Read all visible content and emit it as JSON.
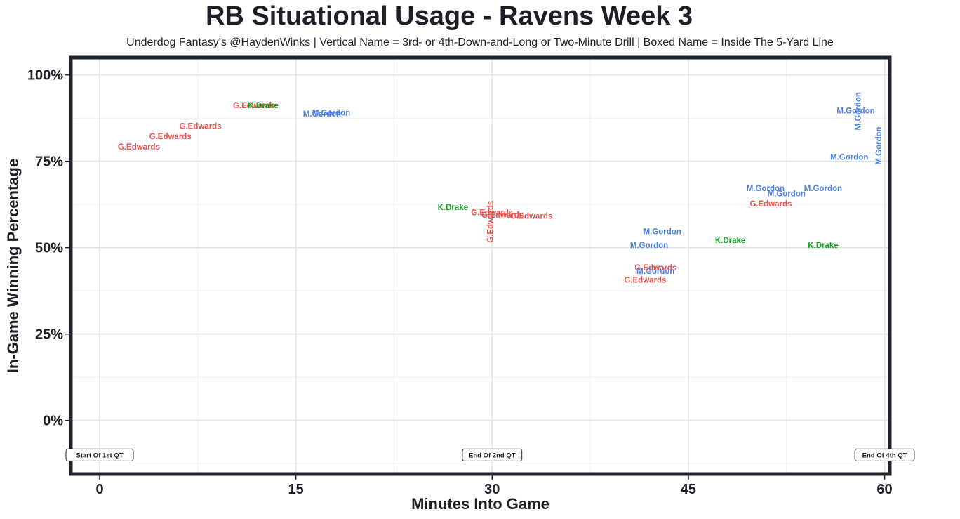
{
  "chart_data": {
    "type": "scatter",
    "title": "RB Situational Usage - Ravens Week 3",
    "subtitle": "Underdog Fantasy's @HaydenWinks | Vertical Name = 3rd- or 4th-Down-and-Long or Two-Minute Drill | Boxed Name = Inside The 5-Yard Line",
    "xlabel": "Minutes Into Game",
    "ylabel": "In-Game Winning Percentage",
    "xlim": [
      -2.2,
      60.4
    ],
    "ylim": [
      -15.5,
      105
    ],
    "x_ticks": [
      0,
      15,
      30,
      45,
      60
    ],
    "x_tick_labels": [
      "0",
      "15",
      "30",
      "45",
      "60"
    ],
    "y_ticks": [
      0,
      25,
      50,
      75,
      100
    ],
    "y_tick_labels": [
      "0%",
      "25%",
      "50%",
      "75%",
      "100%"
    ],
    "grid": true,
    "colors": {
      "G.Edwards": "#e8534e",
      "K.Drake": "#13a323",
      "M.Gordon": "#4a7fe6"
    },
    "quarter_labels": [
      {
        "x": 0,
        "y": -10,
        "label": "Start Of 1st QT"
      },
      {
        "x": 30,
        "y": -10,
        "label": "End Of 2nd QT"
      },
      {
        "x": 60,
        "y": -10,
        "label": "End Of 4th QT"
      }
    ],
    "points": [
      {
        "x": 3.0,
        "y": 79,
        "player": "G.Edwards",
        "vertical": false
      },
      {
        "x": 5.4,
        "y": 82,
        "player": "G.Edwards",
        "vertical": false
      },
      {
        "x": 7.7,
        "y": 85,
        "player": "G.Edwards",
        "vertical": false
      },
      {
        "x": 11.8,
        "y": 91,
        "player": "G.Edwards",
        "vertical": false
      },
      {
        "x": 12.5,
        "y": 91,
        "player": "K.Drake",
        "vertical": false
      },
      {
        "x": 17.0,
        "y": 88.5,
        "player": "M.Gordon",
        "vertical": false
      },
      {
        "x": 17.7,
        "y": 88.9,
        "player": "M.Gordon",
        "vertical": false
      },
      {
        "x": 27.0,
        "y": 61.5,
        "player": "K.Drake",
        "vertical": false
      },
      {
        "x": 29.9,
        "y": 57.5,
        "player": "G.Edwards",
        "vertical": true
      },
      {
        "x": 30.0,
        "y": 60,
        "player": "G.Edwards",
        "vertical": false
      },
      {
        "x": 30.8,
        "y": 59.3,
        "player": "G.Edwards",
        "vertical": false
      },
      {
        "x": 33.0,
        "y": 59,
        "player": "G.Edwards",
        "vertical": false
      },
      {
        "x": 42.5,
        "y": 44,
        "player": "G.Edwards",
        "vertical": false
      },
      {
        "x": 42.5,
        "y": 43,
        "player": "M.Gordon",
        "vertical": false
      },
      {
        "x": 41.7,
        "y": 40.5,
        "player": "G.Edwards",
        "vertical": false
      },
      {
        "x": 42.0,
        "y": 50.5,
        "player": "M.Gordon",
        "vertical": false
      },
      {
        "x": 43.0,
        "y": 54.5,
        "player": "M.Gordon",
        "vertical": false
      },
      {
        "x": 48.2,
        "y": 52,
        "player": "K.Drake",
        "vertical": false
      },
      {
        "x": 51.3,
        "y": 62.5,
        "player": "G.Edwards",
        "vertical": false
      },
      {
        "x": 50.9,
        "y": 67,
        "player": "M.Gordon",
        "vertical": false
      },
      {
        "x": 52.5,
        "y": 65.5,
        "player": "M.Gordon",
        "vertical": false
      },
      {
        "x": 55.3,
        "y": 67,
        "player": "M.Gordon",
        "vertical": false
      },
      {
        "x": 55.3,
        "y": 50.5,
        "player": "K.Drake",
        "vertical": false
      },
      {
        "x": 57.8,
        "y": 89.5,
        "player": "M.Gordon",
        "vertical": false
      },
      {
        "x": 57.3,
        "y": 76,
        "player": "M.Gordon",
        "vertical": false
      },
      {
        "x": 58.0,
        "y": 89.5,
        "player": "M.Gordon",
        "vertical": true
      },
      {
        "x": 59.6,
        "y": 79.5,
        "player": "M.Gordon",
        "vertical": true
      }
    ]
  }
}
